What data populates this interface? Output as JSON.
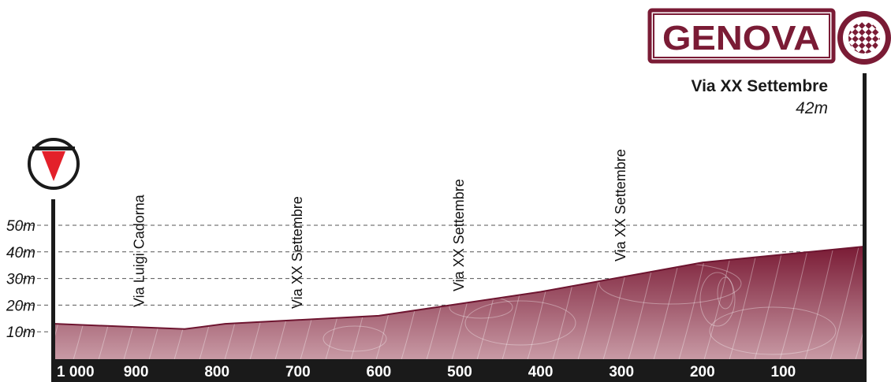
{
  "chart_data": {
    "type": "area",
    "title": "",
    "xlabel": "",
    "ylabel": "",
    "x_reversed": true,
    "xlim": [
      1000,
      0
    ],
    "ylim": [
      0,
      60
    ],
    "x_ticks": [
      "1 000",
      "900",
      "800",
      "700",
      "600",
      "500",
      "400",
      "300",
      "200",
      "100"
    ],
    "x_tick_values": [
      1000,
      900,
      800,
      700,
      600,
      500,
      400,
      300,
      200,
      100
    ],
    "y_ticks": [
      "10m",
      "20m",
      "30m",
      "40m",
      "50m"
    ],
    "y_tick_values": [
      10,
      20,
      30,
      40,
      50
    ],
    "grid": "horizontal dashed",
    "series": [
      {
        "x": [
          1000,
          840,
          790,
          600,
          400,
          200,
          0
        ],
        "y": [
          13,
          11,
          13,
          16,
          25,
          36,
          42
        ]
      }
    ],
    "annotations": [
      {
        "text": "Via Luigi Cadorna",
        "x": 895
      },
      {
        "text": "Via XX Settembre",
        "x": 700
      },
      {
        "text": "Via XX Settembre",
        "x": 500
      },
      {
        "text": "Via XX Settembre",
        "x": 300
      }
    ]
  },
  "finish": {
    "city": "GENOVA",
    "street": "Via XX Settembre",
    "altitude": "42m"
  },
  "colors": {
    "profile_dark": "#7a1b35",
    "profile_light": "#c89aa5",
    "axis_bar": "#1a1a1a",
    "start_marker": "#e3202a"
  },
  "icons": {
    "start": "start-triangle-icon",
    "finish": "checkered-flag-icon"
  }
}
